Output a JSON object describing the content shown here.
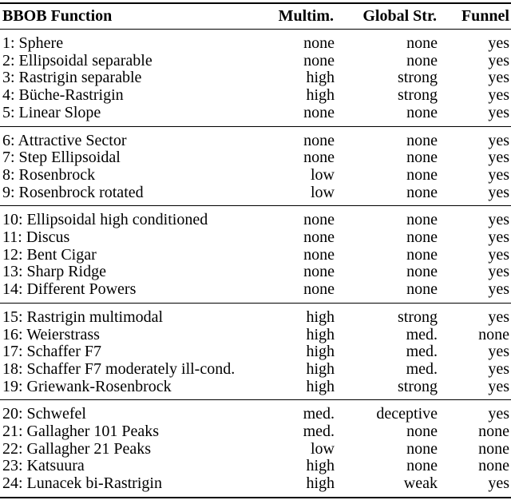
{
  "page": {
    "background": "#ffffff",
    "text_color": "#000000",
    "rule_color": "#000000"
  },
  "table": {
    "columns": [
      {
        "label": "BBOB Function",
        "align": "left"
      },
      {
        "label": "Multim.",
        "align": "right"
      },
      {
        "label": "Global Str.",
        "align": "right"
      },
      {
        "label": "Funnel",
        "align": "right"
      }
    ],
    "groups": [
      {
        "rows": [
          {
            "function": "1: Sphere",
            "multim": "none",
            "global_str": "none",
            "funnel": "yes"
          },
          {
            "function": "2: Ellipsoidal separable",
            "multim": "none",
            "global_str": "none",
            "funnel": "yes"
          },
          {
            "function": "3: Rastrigin separable",
            "multim": "high",
            "global_str": "strong",
            "funnel": "yes"
          },
          {
            "function": "4: Büche-Rastrigin",
            "multim": "high",
            "global_str": "strong",
            "funnel": "yes"
          },
          {
            "function": "5: Linear Slope",
            "multim": "none",
            "global_str": "none",
            "funnel": "yes"
          }
        ]
      },
      {
        "rows": [
          {
            "function": "6: Attractive Sector",
            "multim": "none",
            "global_str": "none",
            "funnel": "yes"
          },
          {
            "function": "7: Step Ellipsoidal",
            "multim": "none",
            "global_str": "none",
            "funnel": "yes"
          },
          {
            "function": "8: Rosenbrock",
            "multim": "low",
            "global_str": "none",
            "funnel": "yes"
          },
          {
            "function": "9: Rosenbrock rotated",
            "multim": "low",
            "global_str": "none",
            "funnel": "yes"
          }
        ]
      },
      {
        "rows": [
          {
            "function": "10: Ellipsoidal high conditioned",
            "multim": "none",
            "global_str": "none",
            "funnel": "yes"
          },
          {
            "function": "11: Discus",
            "multim": "none",
            "global_str": "none",
            "funnel": "yes"
          },
          {
            "function": "12: Bent Cigar",
            "multim": "none",
            "global_str": "none",
            "funnel": "yes"
          },
          {
            "function": "13: Sharp Ridge",
            "multim": "none",
            "global_str": "none",
            "funnel": "yes"
          },
          {
            "function": "14: Different Powers",
            "multim": "none",
            "global_str": "none",
            "funnel": "yes"
          }
        ]
      },
      {
        "rows": [
          {
            "function": "15: Rastrigin multimodal",
            "multim": "high",
            "global_str": "strong",
            "funnel": "yes"
          },
          {
            "function": "16: Weierstrass",
            "multim": "high",
            "global_str": "med.",
            "funnel": "none"
          },
          {
            "function": "17: Schaffer F7",
            "multim": "high",
            "global_str": "med.",
            "funnel": "yes"
          },
          {
            "function": "18: Schaffer F7 moderately ill-cond.",
            "multim": "high",
            "global_str": "med.",
            "funnel": "yes"
          },
          {
            "function": "19: Griewank-Rosenbrock",
            "multim": "high",
            "global_str": "strong",
            "funnel": "yes"
          }
        ]
      },
      {
        "rows": [
          {
            "function": "20: Schwefel",
            "multim": "med.",
            "global_str": "deceptive",
            "funnel": "yes"
          },
          {
            "function": "21: Gallagher 101 Peaks",
            "multim": "med.",
            "global_str": "none",
            "funnel": "none"
          },
          {
            "function": "22: Gallagher 21 Peaks",
            "multim": "low",
            "global_str": "none",
            "funnel": "none"
          },
          {
            "function": "23: Katsuura",
            "multim": "high",
            "global_str": "none",
            "funnel": "none"
          },
          {
            "function": "24: Lunacek bi-Rastrigin",
            "multim": "high",
            "global_str": "weak",
            "funnel": "yes"
          }
        ]
      }
    ]
  }
}
